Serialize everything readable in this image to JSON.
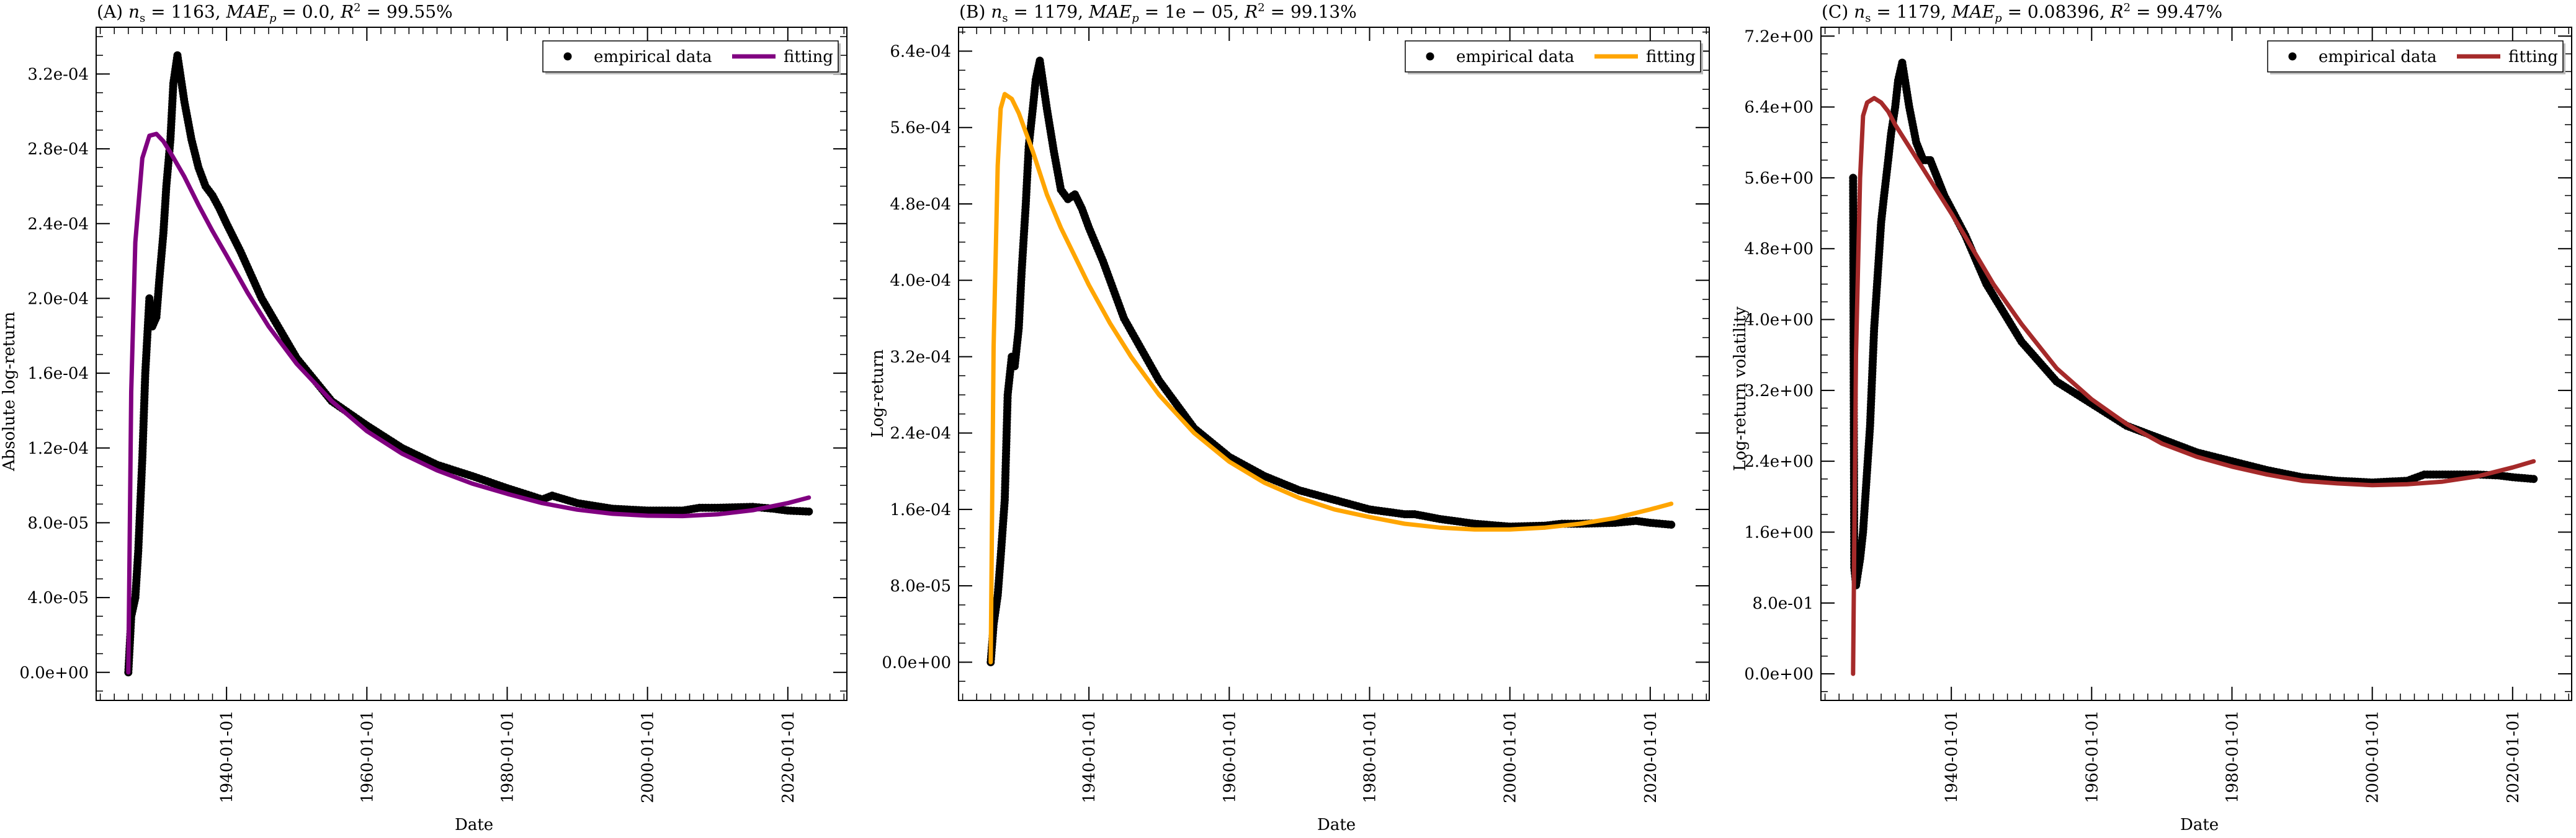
{
  "chart_data": [
    {
      "type": "scatter",
      "title": "(A) n_s = 1163, MAE_p = 0.0, R^2 = 99.55%",
      "xlabel": "Date",
      "ylabel": "Absolute log-return",
      "xlim": [
        "1921-06-01",
        "2028-06-01"
      ],
      "ylim": [
        -1.5e-05,
        0.000345
      ],
      "x_ticks": [
        "1940-01-01",
        "1960-01-01",
        "1980-01-01",
        "2000-01-01",
        "2020-01-01"
      ],
      "y_ticks": [
        "0.0e+00",
        "4.0e-05",
        "8.0e-05",
        "1.2e-04",
        "1.6e-04",
        "2.0e-04",
        "2.4e-04",
        "2.8e-04",
        "3.2e-04"
      ],
      "fit_color": "#800080",
      "legend": {
        "position": "top-right",
        "entries": [
          "empirical data",
          "fitting"
        ]
      },
      "series": [
        {
          "name": "empirical data",
          "x": [
            "1926-01-01",
            "1926-06-01",
            "1927-01-01",
            "1927-06-01",
            "1928-01-01",
            "1928-06-01",
            "1929-01-01",
            "1929-06-01",
            "1930-01-01",
            "1930-06-01",
            "1931-01-01",
            "1931-06-01",
            "1932-01-01",
            "1932-06-01",
            "1933-01-01",
            "1934-01-01",
            "1935-01-01",
            "1936-01-01",
            "1937-01-01",
            "1938-01-01",
            "1939-01-01",
            "1940-01-01",
            "1942-01-01",
            "1945-01-01",
            "1950-01-01",
            "1955-01-01",
            "1960-01-01",
            "1965-01-01",
            "1970-01-01",
            "1975-01-01",
            "1980-01-01",
            "1985-01-01",
            "1986-06-01",
            "1990-01-01",
            "1995-01-01",
            "2000-01-01",
            "2005-01-01",
            "2007-06-01",
            "2010-01-01",
            "2015-01-01",
            "2018-01-01",
            "2020-01-01",
            "2023-01-01"
          ],
          "y": [
            0,
            3e-05,
            4e-05,
            6.5e-05,
            0.000115,
            0.00016,
            0.0002,
            0.000185,
            0.00019,
            0.00021,
            0.000235,
            0.00026,
            0.000285,
            0.000315,
            0.00033,
            0.000305,
            0.000285,
            0.00027,
            0.00026,
            0.000255,
            0.000248,
            0.00024,
            0.000225,
            0.0002,
            0.000168,
            0.000145,
            0.000132,
            0.00012,
            0.000111,
            0.000105,
            9.85e-05,
            9.25e-05,
            9.45e-05,
            9.05e-05,
            8.75e-05,
            8.65e-05,
            8.65e-05,
            8.8e-05,
            8.8e-05,
            8.85e-05,
            8.75e-05,
            8.65e-05,
            8.6e-05
          ]
        },
        {
          "name": "fitting",
          "x": [
            "1926-01-01",
            "1926-06-01",
            "1927-01-01",
            "1928-01-01",
            "1929-01-01",
            "1930-01-01",
            "1931-01-01",
            "1932-01-01",
            "1934-01-01",
            "1936-01-01",
            "1938-01-01",
            "1940-01-01",
            "1943-01-01",
            "1946-01-01",
            "1950-01-01",
            "1955-01-01",
            "1960-01-01",
            "1965-01-01",
            "1970-01-01",
            "1975-01-01",
            "1980-01-01",
            "1985-01-01",
            "1990-01-01",
            "1995-01-01",
            "2000-01-01",
            "2005-01-01",
            "2010-01-01",
            "2015-01-01",
            "2020-01-01",
            "2023-01-01"
          ],
          "y": [
            0,
            0.00015,
            0.00023,
            0.000275,
            0.000287,
            0.000288,
            0.000284,
            0.000278,
            0.000265,
            0.00025,
            0.000236,
            0.000223,
            0.000203,
            0.000185,
            0.000165,
            0.000145,
            0.000129,
            0.000117,
            0.000108,
            0.000101,
            9.55e-05,
            9.05e-05,
            8.7e-05,
            8.48e-05,
            8.38e-05,
            8.36e-05,
            8.45e-05,
            8.67e-05,
            9.05e-05,
            9.35e-05
          ]
        }
      ]
    },
    {
      "type": "scatter",
      "title": "(B) n_s = 1179, MAE_p = 1e − 05, R^2 = 99.13%",
      "xlabel": "Date",
      "ylabel": "Log-return",
      "xlim": [
        "1921-06-01",
        "2028-06-01"
      ],
      "ylim": [
        -4e-05,
        0.000665
      ],
      "x_ticks": [
        "1940-01-01",
        "1960-01-01",
        "1980-01-01",
        "2000-01-01",
        "2020-01-01"
      ],
      "y_ticks": [
        "0.0e+00",
        "8.0e-05",
        "1.6e-04",
        "2.4e-04",
        "3.2e-04",
        "4.0e-04",
        "4.8e-04",
        "5.6e-04",
        "6.4e-04"
      ],
      "fit_color": "#FFA500",
      "legend": {
        "position": "top-right",
        "entries": [
          "empirical data",
          "fitting"
        ]
      },
      "series": [
        {
          "name": "empirical data",
          "x": [
            "1926-01-01",
            "1926-06-01",
            "1927-01-01",
            "1927-06-01",
            "1928-01-01",
            "1928-06-01",
            "1929-01-01",
            "1929-06-01",
            "1930-01-01",
            "1930-06-01",
            "1931-01-01",
            "1931-06-01",
            "1932-01-01",
            "1932-06-01",
            "1933-01-01",
            "1934-01-01",
            "1935-01-01",
            "1936-01-01",
            "1937-01-01",
            "1938-01-01",
            "1939-01-01",
            "1940-01-01",
            "1942-01-01",
            "1945-01-01",
            "1950-01-01",
            "1955-01-01",
            "1960-01-01",
            "1965-01-01",
            "1970-01-01",
            "1975-01-01",
            "1980-01-01",
            "1985-01-01",
            "1986-06-01",
            "1990-01-01",
            "1995-01-01",
            "2000-01-01",
            "2005-01-01",
            "2007-06-01",
            "2010-01-01",
            "2015-01-01",
            "2018-01-01",
            "2020-01-01",
            "2023-01-01"
          ],
          "y": [
            0,
            4e-05,
            7e-05,
            0.00011,
            0.00017,
            0.00028,
            0.00032,
            0.00031,
            0.00035,
            0.00041,
            0.00048,
            0.00054,
            0.00058,
            0.00061,
            0.00063,
            0.00058,
            0.000535,
            0.000495,
            0.000485,
            0.00049,
            0.000475,
            0.000455,
            0.00042,
            0.00036,
            0.000295,
            0.000245,
            0.000215,
            0.000195,
            0.00018,
            0.00017,
            0.00016,
            0.000155,
            0.000155,
            0.00015,
            0.000145,
            0.000142,
            0.000143,
            0.000145,
            0.000145,
            0.000146,
            0.000148,
            0.000146,
            0.000144
          ]
        },
        {
          "name": "fitting",
          "x": [
            "1926-01-01",
            "1926-06-01",
            "1927-01-01",
            "1927-06-01",
            "1928-01-01",
            "1929-01-01",
            "1930-01-01",
            "1931-01-01",
            "1932-01-01",
            "1934-01-01",
            "1936-01-01",
            "1938-01-01",
            "1940-01-01",
            "1943-01-01",
            "1946-01-01",
            "1950-01-01",
            "1955-01-01",
            "1960-01-01",
            "1965-01-01",
            "1970-01-01",
            "1975-01-01",
            "1980-01-01",
            "1985-01-01",
            "1990-01-01",
            "1995-01-01",
            "2000-01-01",
            "2005-01-01",
            "2010-01-01",
            "2015-01-01",
            "2020-01-01",
            "2023-01-01"
          ],
          "y": [
            0,
            0.00033,
            0.00052,
            0.00058,
            0.000595,
            0.00059,
            0.000575,
            0.000555,
            0.000535,
            0.00049,
            0.000455,
            0.000425,
            0.000395,
            0.000355,
            0.00032,
            0.00028,
            0.00024,
            0.00021,
            0.000188,
            0.000172,
            0.00016,
            0.000152,
            0.000145,
            0.000141,
            0.000139,
            0.000139,
            0.000141,
            0.000145,
            0.000151,
            0.00016,
            0.000166
          ]
        }
      ]
    },
    {
      "type": "scatter",
      "title": "(C) n_s = 1179, MAE_p = 0.08396, R^2 = 99.47%",
      "xlabel": "Date",
      "ylabel": "Log-return volatility",
      "xlim": [
        "1921-06-01",
        "2028-06-01"
      ],
      "ylim": [
        -0.3,
        7.3
      ],
      "x_ticks": [
        "1940-01-01",
        "1960-01-01",
        "1980-01-01",
        "2000-01-01",
        "2020-01-01"
      ],
      "y_ticks": [
        "0.0e+00",
        "8.0e-01",
        "1.6e+00",
        "2.4e+00",
        "3.2e+00",
        "4.0e+00",
        "4.8e+00",
        "5.6e+00",
        "6.4e+00",
        "7.2e+00"
      ],
      "fit_color": "#A52A2A",
      "legend": {
        "position": "top-right",
        "entries": [
          "empirical data",
          "fitting"
        ]
      },
      "series": [
        {
          "name": "empirical data",
          "x": [
            "1926-01-01",
            "1926-03-01",
            "1926-06-01",
            "1927-01-01",
            "1927-06-01",
            "1928-01-01",
            "1928-06-01",
            "1929-01-01",
            "1929-06-01",
            "1930-01-01",
            "1930-06-01",
            "1931-01-01",
            "1931-06-01",
            "1932-01-01",
            "1932-06-01",
            "1933-01-01",
            "1934-01-01",
            "1935-01-01",
            "1936-01-01",
            "1937-01-01",
            "1938-01-01",
            "1939-01-01",
            "1940-01-01",
            "1942-01-01",
            "1945-01-01",
            "1950-01-01",
            "1955-01-01",
            "1960-01-01",
            "1965-01-01",
            "1970-01-01",
            "1975-01-01",
            "1980-01-01",
            "1985-01-01",
            "1990-01-01",
            "1995-01-01",
            "2000-01-01",
            "2005-01-01",
            "2007-06-01",
            "2010-01-01",
            "2015-01-01",
            "2018-01-01",
            "2020-01-01",
            "2023-01-01"
          ],
          "y": [
            5.6,
            1.2,
            1.0,
            1.3,
            1.6,
            2.3,
            2.8,
            3.9,
            4.4,
            5.1,
            5.4,
            5.8,
            6.1,
            6.4,
            6.7,
            6.9,
            6.4,
            6.0,
            5.8,
            5.8,
            5.6,
            5.4,
            5.25,
            4.95,
            4.4,
            3.75,
            3.3,
            3.05,
            2.8,
            2.65,
            2.5,
            2.4,
            2.3,
            2.22,
            2.18,
            2.16,
            2.18,
            2.25,
            2.25,
            2.25,
            2.24,
            2.22,
            2.2
          ]
        },
        {
          "name": "fitting",
          "x": [
            "1926-01-01",
            "1926-06-01",
            "1927-01-01",
            "1927-06-01",
            "1928-01-01",
            "1929-01-01",
            "1930-01-01",
            "1931-01-01",
            "1932-01-01",
            "1934-01-01",
            "1936-01-01",
            "1938-01-01",
            "1940-01-01",
            "1943-01-01",
            "1946-01-01",
            "1950-01-01",
            "1955-01-01",
            "1960-01-01",
            "1965-01-01",
            "1970-01-01",
            "1975-01-01",
            "1980-01-01",
            "1985-01-01",
            "1990-01-01",
            "1995-01-01",
            "2000-01-01",
            "2005-01-01",
            "2010-01-01",
            "2015-01-01",
            "2020-01-01",
            "2023-01-01"
          ],
          "y": [
            0,
            3.6,
            5.6,
            6.3,
            6.45,
            6.5,
            6.45,
            6.35,
            6.2,
            5.95,
            5.7,
            5.45,
            5.2,
            4.8,
            4.4,
            3.95,
            3.45,
            3.1,
            2.82,
            2.6,
            2.45,
            2.34,
            2.25,
            2.18,
            2.15,
            2.13,
            2.14,
            2.17,
            2.23,
            2.33,
            2.4
          ]
        }
      ]
    }
  ]
}
